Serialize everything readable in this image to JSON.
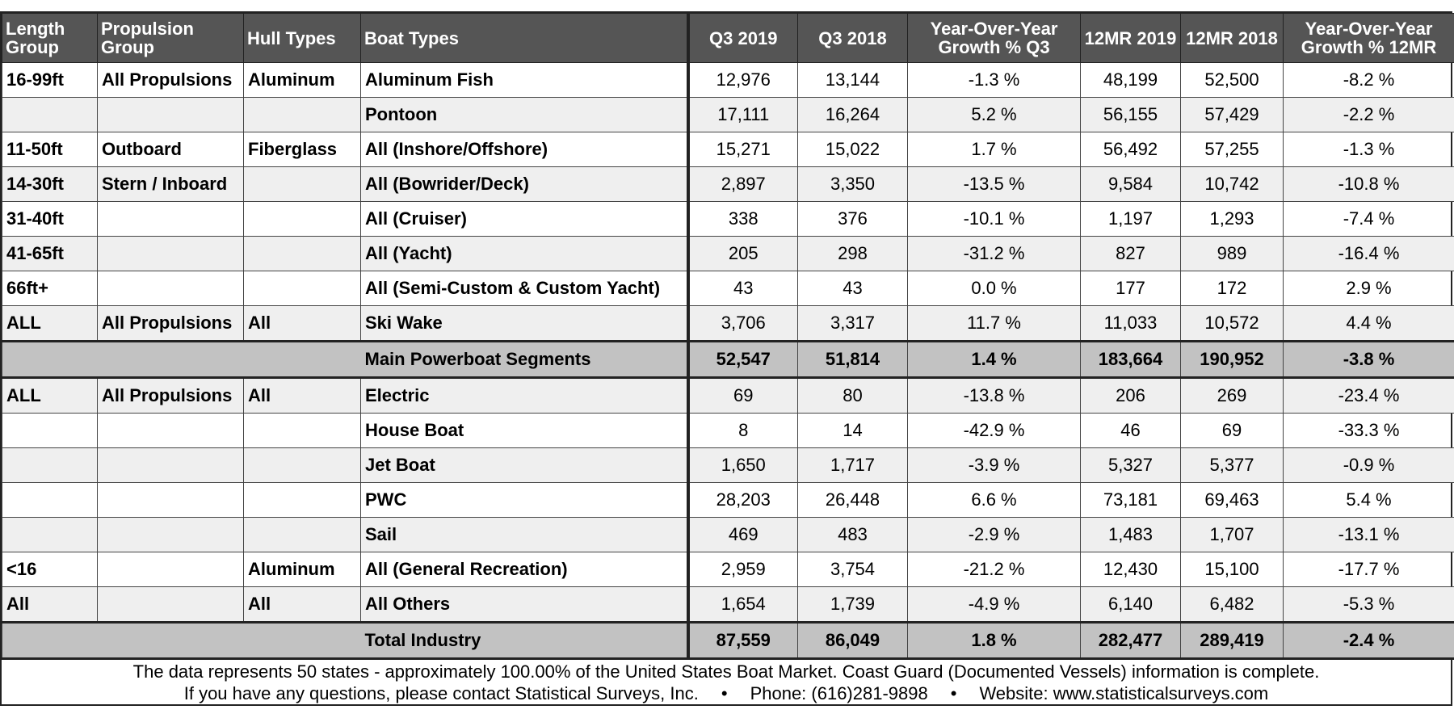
{
  "table": {
    "header": [
      "Length Group",
      "Propulsion Group",
      "Hull Types",
      "Boat Types",
      "Q3 2019",
      "Q3 2018",
      "Year-Over-Year Growth % Q3",
      "12MR 2019",
      "12MR 2018",
      "Year-Over-Year Growth % 12MR"
    ],
    "rows": [
      {
        "length": "16-99ft",
        "propulsion": "All Propulsions",
        "hull": "Aluminum",
        "boat": "Aluminum Fish",
        "q3_2019": "12,976",
        "q3_2018": "13,144",
        "yoy_q3": "-1.3 %",
        "mr_2019": "48,199",
        "mr_2018": "52,500",
        "yoy_12mr": "-8.2 %"
      },
      {
        "boat": "Pontoon",
        "q3_2019": "17,111",
        "q3_2018": "16,264",
        "yoy_q3": "5.2 %",
        "mr_2019": "56,155",
        "mr_2018": "57,429",
        "yoy_12mr": "-2.2 %"
      },
      {
        "length": "11-50ft",
        "propulsion": "Outboard",
        "hull": "Fiberglass",
        "boat": "All (Inshore/Offshore)",
        "q3_2019": "15,271",
        "q3_2018": "15,022",
        "yoy_q3": "1.7 %",
        "mr_2019": "56,492",
        "mr_2018": "57,255",
        "yoy_12mr": "-1.3 %"
      },
      {
        "length": "14-30ft",
        "propulsion": "Stern / Inboard",
        "boat": "All (Bowrider/Deck)",
        "q3_2019": "2,897",
        "q3_2018": "3,350",
        "yoy_q3": "-13.5 %",
        "mr_2019": "9,584",
        "mr_2018": "10,742",
        "yoy_12mr": "-10.8 %"
      },
      {
        "length": "31-40ft",
        "boat": "All (Cruiser)",
        "q3_2019": "338",
        "q3_2018": "376",
        "yoy_q3": "-10.1 %",
        "mr_2019": "1,197",
        "mr_2018": "1,293",
        "yoy_12mr": "-7.4 %"
      },
      {
        "length": "41-65ft",
        "boat": "All (Yacht)",
        "q3_2019": "205",
        "q3_2018": "298",
        "yoy_q3": "-31.2 %",
        "mr_2019": "827",
        "mr_2018": "989",
        "yoy_12mr": "-16.4 %"
      },
      {
        "length": "66ft+",
        "boat": "All (Semi-Custom & Custom Yacht)",
        "q3_2019": "43",
        "q3_2018": "43",
        "yoy_q3": "0.0 %",
        "mr_2019": "177",
        "mr_2018": "172",
        "yoy_12mr": "2.9 %"
      },
      {
        "length": "ALL",
        "propulsion": "All Propulsions",
        "hull": "All",
        "boat": "Ski Wake",
        "q3_2019": "3,706",
        "q3_2018": "3,317",
        "yoy_q3": "11.7 %",
        "mr_2019": "11,033",
        "mr_2018": "10,572",
        "yoy_12mr": "4.4 %"
      },
      {
        "summary": "Main Powerboat Segments",
        "q3_2019": "52,547",
        "q3_2018": "51,814",
        "yoy_q3": "1.4 %",
        "mr_2019": "183,664",
        "mr_2018": "190,952",
        "yoy_12mr": "-3.8 %"
      },
      {
        "length": "ALL",
        "propulsion": "All Propulsions",
        "hull": "All",
        "boat": "Electric",
        "q3_2019": "69",
        "q3_2018": "80",
        "yoy_q3": "-13.8 %",
        "mr_2019": "206",
        "mr_2018": "269",
        "yoy_12mr": "-23.4 %"
      },
      {
        "boat": "House Boat",
        "q3_2019": "8",
        "q3_2018": "14",
        "yoy_q3": "-42.9 %",
        "mr_2019": "46",
        "mr_2018": "69",
        "yoy_12mr": "-33.3 %"
      },
      {
        "boat": "Jet Boat",
        "q3_2019": "1,650",
        "q3_2018": "1,717",
        "yoy_q3": "-3.9 %",
        "mr_2019": "5,327",
        "mr_2018": "5,377",
        "yoy_12mr": "-0.9 %"
      },
      {
        "boat": "PWC",
        "q3_2019": "28,203",
        "q3_2018": "26,448",
        "yoy_q3": "6.6 %",
        "mr_2019": "73,181",
        "mr_2018": "69,463",
        "yoy_12mr": "5.4 %"
      },
      {
        "boat": "Sail",
        "q3_2019": "469",
        "q3_2018": "483",
        "yoy_q3": "-2.9 %",
        "mr_2019": "1,483",
        "mr_2018": "1,707",
        "yoy_12mr": "-13.1 %"
      },
      {
        "length": "<16",
        "hull": "Aluminum",
        "boat": "All (General Recreation)",
        "q3_2019": "2,959",
        "q3_2018": "3,754",
        "yoy_q3": "-21.2 %",
        "mr_2019": "12,430",
        "mr_2018": "15,100",
        "yoy_12mr": "-17.7 %"
      },
      {
        "length": "All",
        "hull": "All",
        "boat": "All Others",
        "q3_2019": "1,654",
        "q3_2018": "1,739",
        "yoy_q3": "-4.9 %",
        "mr_2019": "6,140",
        "mr_2018": "6,482",
        "yoy_12mr": "-5.3 %"
      },
      {
        "summary": "Total Industry",
        "q3_2019": "87,559",
        "q3_2018": "86,049",
        "yoy_q3": "1.8 %",
        "mr_2019": "282,477",
        "mr_2018": "289,419",
        "yoy_12mr": "-2.4 %"
      }
    ]
  },
  "footer": {
    "line1": "The data represents 50 states - approximately 100.00% of the United States Boat Market.  Coast Guard (Documented Vessels) information is complete.",
    "contact": "If you have any questions, please contact Statistical Surveys, Inc.",
    "phone": "Phone: (616)281-9898",
    "website": "Website: www.statisticalsurveys.com"
  }
}
